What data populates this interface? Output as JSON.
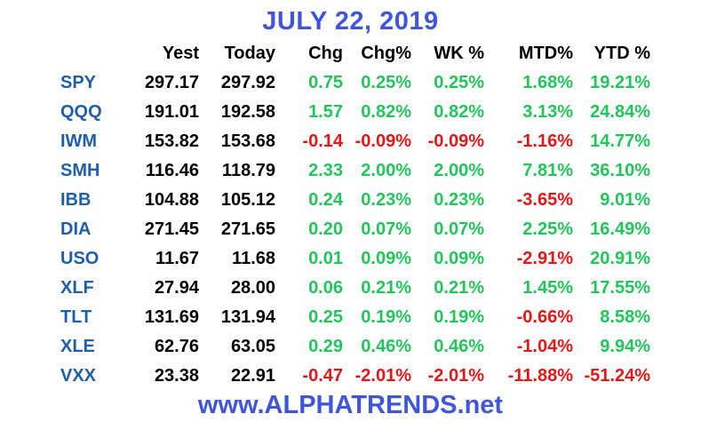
{
  "title": "JULY 22, 2019",
  "footer": "www.ALPHATRENDS.net",
  "colors": {
    "title": "#3F55DD",
    "symbol": "#1F5FA8",
    "price": "#000000",
    "positive": "#22C55A",
    "negative": "#E01818"
  },
  "headers": [
    "",
    "Yest",
    "Today",
    "Chg",
    "Chg%",
    "WK %",
    "MTD%",
    "YTD %"
  ],
  "rows": [
    {
      "symbol": "SPY",
      "yest": "297.17",
      "today": "297.92",
      "chg": "0.75",
      "chg_pct": "0.25%",
      "wk_pct": "0.25%",
      "mtd_pct": "1.68%",
      "ytd_pct": "19.21%"
    },
    {
      "symbol": "QQQ",
      "yest": "191.01",
      "today": "192.58",
      "chg": "1.57",
      "chg_pct": "0.82%",
      "wk_pct": "0.82%",
      "mtd_pct": "3.13%",
      "ytd_pct": "24.84%"
    },
    {
      "symbol": "IWM",
      "yest": "153.82",
      "today": "153.68",
      "chg": "-0.14",
      "chg_pct": "-0.09%",
      "wk_pct": "-0.09%",
      "mtd_pct": "-1.16%",
      "ytd_pct": "14.77%"
    },
    {
      "symbol": "SMH",
      "yest": "116.46",
      "today": "118.79",
      "chg": "2.33",
      "chg_pct": "2.00%",
      "wk_pct": "2.00%",
      "mtd_pct": "7.81%",
      "ytd_pct": "36.10%"
    },
    {
      "symbol": "IBB",
      "yest": "104.88",
      "today": "105.12",
      "chg": "0.24",
      "chg_pct": "0.23%",
      "wk_pct": "0.23%",
      "mtd_pct": "-3.65%",
      "ytd_pct": "9.01%"
    },
    {
      "symbol": "DIA",
      "yest": "271.45",
      "today": "271.65",
      "chg": "0.20",
      "chg_pct": "0.07%",
      "wk_pct": "0.07%",
      "mtd_pct": "2.25%",
      "ytd_pct": "16.49%"
    },
    {
      "symbol": "USO",
      "yest": "11.67",
      "today": "11.68",
      "chg": "0.01",
      "chg_pct": "0.09%",
      "wk_pct": "0.09%",
      "mtd_pct": "-2.91%",
      "ytd_pct": "20.91%"
    },
    {
      "symbol": "XLF",
      "yest": "27.94",
      "today": "28.00",
      "chg": "0.06",
      "chg_pct": "0.21%",
      "wk_pct": "0.21%",
      "mtd_pct": "1.45%",
      "ytd_pct": "17.55%"
    },
    {
      "symbol": "TLT",
      "yest": "131.69",
      "today": "131.94",
      "chg": "0.25",
      "chg_pct": "0.19%",
      "wk_pct": "0.19%",
      "mtd_pct": "-0.66%",
      "ytd_pct": "8.58%"
    },
    {
      "symbol": "XLE",
      "yest": "62.76",
      "today": "63.05",
      "chg": "0.29",
      "chg_pct": "0.46%",
      "wk_pct": "0.46%",
      "mtd_pct": "-1.04%",
      "ytd_pct": "9.94%"
    },
    {
      "symbol": "VXX",
      "yest": "23.38",
      "today": "22.91",
      "chg": "-0.47",
      "chg_pct": "-2.01%",
      "wk_pct": "-2.01%",
      "mtd_pct": "-11.88%",
      "ytd_pct": "-51.24%"
    }
  ]
}
